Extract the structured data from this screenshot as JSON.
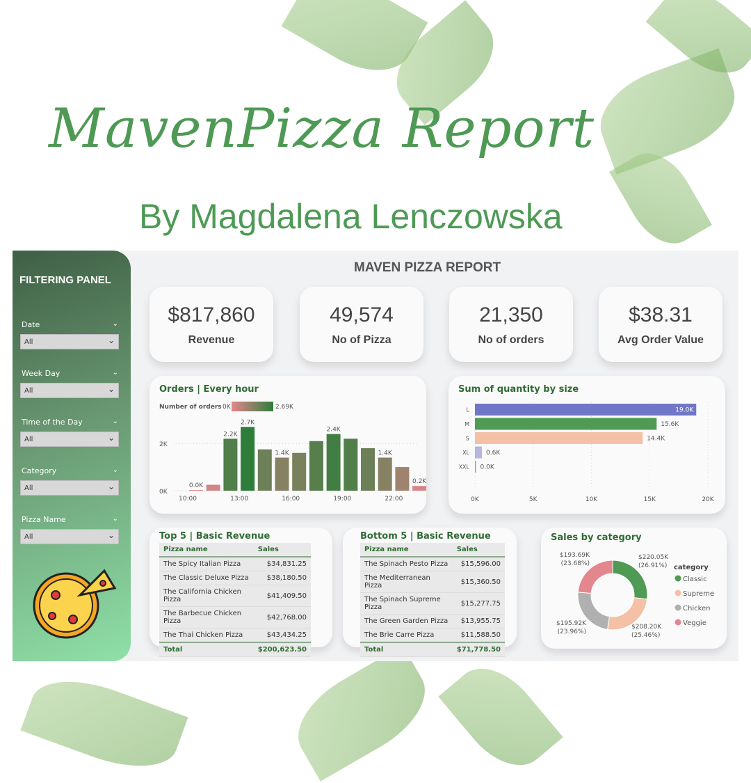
{
  "header": {
    "script_title": "MavenPizza Report",
    "byline": "By Magdalena Lenczowska"
  },
  "filter_panel": {
    "title": "FILTERING PANEL",
    "filters": [
      {
        "label": "Date",
        "value": "All"
      },
      {
        "label": "Week Day",
        "value": "All"
      },
      {
        "label": "Time of the Day",
        "value": "All"
      },
      {
        "label": "Category",
        "value": "All"
      },
      {
        "label": "Pizza Name",
        "value": "All"
      }
    ]
  },
  "report_title": "MAVEN PIZZA REPORT",
  "kpis": [
    {
      "value": "$817,860",
      "label": "Revenue"
    },
    {
      "value": "49,574",
      "label": "No of Pizza"
    },
    {
      "value": "21,350",
      "label": "No of orders"
    },
    {
      "value": "$38.31",
      "label": "Avg Order Value"
    }
  ],
  "chart_data": [
    {
      "type": "bar",
      "title": "Orders | Every hour",
      "legend_title": "Number of orders",
      "legend_min": "0K",
      "legend_max": "2.69K",
      "colors": {
        "low": "#e3868e",
        "high": "#2f7d3a"
      },
      "categories": [
        "10:00",
        "11:00",
        "12:00",
        "13:00",
        "14:00",
        "15:00",
        "16:00",
        "17:00",
        "18:00",
        "19:00",
        "20:00",
        "21:00",
        "22:00",
        "23:00"
      ],
      "values": [
        8,
        250,
        2200,
        2700,
        1750,
        1400,
        1600,
        2100,
        2400,
        2200,
        1800,
        1400,
        1000,
        200
      ],
      "data_labels": {
        "0": "0.0K",
        "2": "2.2K",
        "3": "2.7K",
        "5": "1.4K",
        "8": "2.4K",
        "11": "1.4K",
        "13": "0.2K"
      },
      "x_tick_labels": [
        "10:00",
        "13:00",
        "16:00",
        "19:00",
        "22:00"
      ],
      "y_tick_labels": [
        "0K",
        "2K"
      ],
      "ylim": [
        0,
        2800
      ],
      "grid": true
    },
    {
      "type": "bar",
      "orientation": "horizontal",
      "title": "Sum of quantity by size",
      "categories": [
        "L",
        "M",
        "S",
        "XL",
        "XXL"
      ],
      "values": [
        19000,
        15600,
        14400,
        600,
        0
      ],
      "data_labels": [
        "19.0K",
        "15.6K",
        "14.4K",
        "0.6K",
        "0.0K"
      ],
      "colors": [
        "#7077c6",
        "#4f9a55",
        "#f4c0a6",
        "#b6b6e0",
        "#9b9bd0"
      ],
      "x_tick_labels": [
        "0K",
        "5K",
        "10K",
        "15K",
        "20K"
      ],
      "xlim": [
        0,
        20000
      ],
      "grid": true
    },
    {
      "type": "pie",
      "variant": "donut",
      "title": "Sales by category",
      "legend_title": "category",
      "legend_position": "right",
      "slices": [
        {
          "name": "Classic",
          "value": 220050,
          "label": "$220.05K",
          "pct": "(26.91%)",
          "color": "#4f9a55"
        },
        {
          "name": "Supreme",
          "value": 208200,
          "label": "$208.20K",
          "pct": "(25.46%)",
          "color": "#f4c0a6"
        },
        {
          "name": "Chicken",
          "value": 195920,
          "label": "$195.92K",
          "pct": "(23.96%)",
          "color": "#b0b0b0"
        },
        {
          "name": "Veggie",
          "value": 193690,
          "label": "$193.69K",
          "pct": "(23.68%)",
          "color": "#e3868e"
        }
      ]
    }
  ],
  "top5": {
    "title": "Top 5 | Basic Revenue",
    "col1": "Pizza name",
    "col2": "Sales",
    "rows": [
      [
        "The Spicy Italian Pizza",
        "$34,831.25"
      ],
      [
        "The Classic Deluxe Pizza",
        "$38,180.50"
      ],
      [
        "The California Chicken Pizza",
        "$41,409.50"
      ],
      [
        "The Barbecue Chicken Pizza",
        "$42,768.00"
      ],
      [
        "The Thai Chicken Pizza",
        "$43,434.25"
      ]
    ],
    "total_label": "Total",
    "total": "$200,623.50"
  },
  "bottom5": {
    "title": "Bottom 5 | Basic Revenue",
    "col1": "Pizza name",
    "col2": "Sales",
    "rows": [
      [
        "The Spinach Pesto Pizza",
        "$15,596.00"
      ],
      [
        "The Mediterranean Pizza",
        "$15,360.50"
      ],
      [
        "The Spinach Supreme Pizza",
        "$15,277.75"
      ],
      [
        "The Green Garden Pizza",
        "$13,955.75"
      ],
      [
        "The Brie Carre Pizza",
        "$11,588.50"
      ]
    ],
    "total_label": "Total",
    "total": "$71,778.50"
  }
}
